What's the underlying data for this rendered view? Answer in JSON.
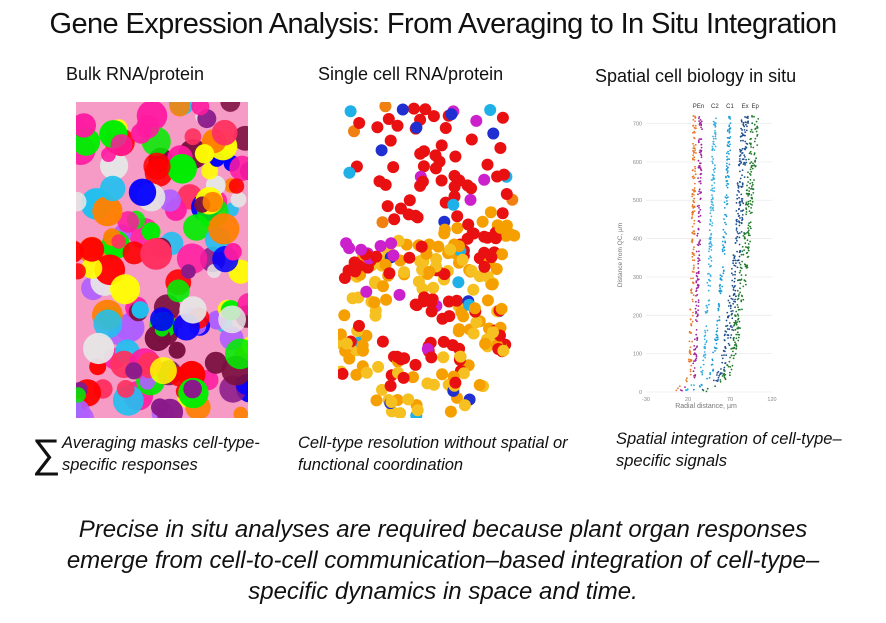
{
  "title": "Gene Expression Analysis: From Averaging to In Situ Integration",
  "columns": [
    {
      "heading": "Bulk RNA/protein",
      "caption_symbol": "∑",
      "caption": "Averaging masks cell-type-specific responses",
      "image": "dense-multicolor-dot-mosaic"
    },
    {
      "heading": "Single cell RNA/protein",
      "caption": "Cell-type resolution without spatial or functional coordination",
      "image": "clustered-cell-dots-red-orange"
    },
    {
      "heading": "Spatial cell biology in situ",
      "caption": "Spatial integration of cell-type–specific signals",
      "image": "radial-distance-scatter"
    }
  ],
  "conclusion": "Precise in situ analyses are required because plant organ responses emerge from cell-to-cell communication–based integration of cell-type–specific dynamics in space and time.",
  "palettes": {
    "bulk": [
      "#ff0000",
      "#ffff00",
      "#0000ff",
      "#00ee00",
      "#ff8000",
      "#ff1aa0",
      "#8a1a8a",
      "#20c0f0",
      "#7a1040",
      "#b060ff",
      "#e6e6e6",
      "#ff3060"
    ],
    "single_cell": [
      "#e81010",
      "#f5a000",
      "#f08010",
      "#cc20cc",
      "#2030d0",
      "#20b0e8",
      "#9020c0",
      "#f5c020"
    ]
  },
  "chart_data": {
    "type": "scatter",
    "title": "",
    "xlabel": "Radial distance, µm",
    "ylabel": "Distance from QC, µm",
    "xlim": [
      -30,
      120
    ],
    "ylim": [
      0,
      730
    ],
    "xticks": [
      -30,
      20,
      70,
      120
    ],
    "yticks": [
      0,
      100,
      200,
      300,
      400,
      500,
      600,
      700
    ],
    "grid": true,
    "legend_placement": "top",
    "series": [
      {
        "name": "P",
        "color": "#e87a2a",
        "x_base": 18,
        "x_top": 28
      },
      {
        "name": "En",
        "color": "#a0269c",
        "x_base": 22,
        "x_top": 35
      },
      {
        "name": "C2",
        "color": "#3bb0e0",
        "x_base": 26,
        "x_top": 52
      },
      {
        "name": "C1",
        "color": "#1a9bd6",
        "x_base": 33,
        "x_top": 70
      },
      {
        "name": "Ex",
        "color": "#1e4e8c",
        "x_base": 40,
        "x_top": 88
      },
      {
        "name": "Ep",
        "color": "#1f7a2a",
        "x_base": 45,
        "x_top": 100
      }
    ]
  }
}
